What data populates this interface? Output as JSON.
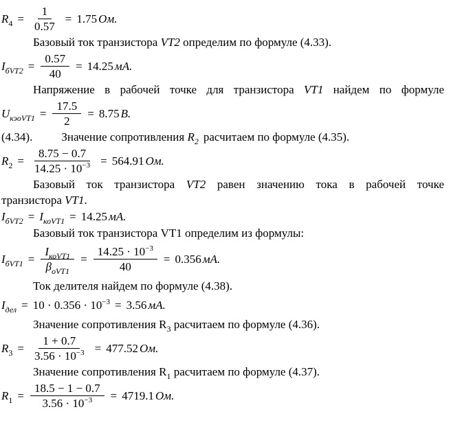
{
  "page": {
    "background": "#ffffff",
    "text_color": "#000000"
  },
  "symbols": {
    "equals": "="
  },
  "blocks": {
    "f1": {
      "variable": "R",
      "subscript": "4",
      "numerator": "1",
      "denominator": "0.57",
      "result": "1.75",
      "unit": "Ом."
    },
    "t1": {
      "pre": "Базовый ток транзистора ",
      "emph": "VT2",
      "post": " определим по формуле (4.33)."
    },
    "f2": {
      "variable": "I",
      "subscript": "бVT2",
      "numerator": "0.57",
      "denominator": "40",
      "result": "14.25",
      "unit": "мА."
    },
    "t2": {
      "pre": "Напряжение в рабочей точке для транзистора ",
      "emph": "VT1",
      "post": " найдем по формуле"
    },
    "f3": {
      "variable": "U",
      "subscript": "кэоVT1",
      "numerator": "17.5",
      "denominator": "2",
      "result": "8.75",
      "unit": "В."
    },
    "t3": {
      "ref": "(4.34).",
      "pre": "Значение сопротивления ",
      "rvar": "R",
      "rsub": "2",
      "post": "расчитаем по формуле (4.35)."
    },
    "f4": {
      "variable": "R",
      "subscript": "2",
      "numerator": "8.75 − 0.7",
      "den_base": "14.25 · 10",
      "den_exp": "−3",
      "result": "564.91",
      "unit": "Ом."
    },
    "t4_line1": {
      "pre": "Базовый ток транзистора ",
      "emph": "VT2",
      "post": " равен значению тока в рабочей точке"
    },
    "t4_line2": {
      "pre": "транзистора ",
      "emph": "VT1",
      "post": "."
    },
    "f5": {
      "var1": "I",
      "sub1": "бVT2",
      "var2": "I",
      "sub2": "коVT1",
      "result": "14.25",
      "unit": "мА."
    },
    "t5": {
      "text": "Базовый ток транзистора VT1 определим из формулы:"
    },
    "f6": {
      "variable": "I",
      "subscript": "бVT1",
      "num1_var": "I",
      "num1_sub": "коVT1",
      "den1_var": "β",
      "den1_sub": "оVT1",
      "num2_base": "14.25 · 10",
      "num2_exp": "−3",
      "den2": "40",
      "result": "0.356",
      "unit": "мА."
    },
    "t6": {
      "text": "Ток делителя найдем по формуле (4.38)."
    },
    "f7": {
      "variable": "I",
      "subscript": "дел",
      "expr_base": "10 · 0.356 · 10",
      "expr_exp": "−3",
      "result": "3.56",
      "unit": "мА."
    },
    "t7": {
      "pre": "Значение сопротивления R",
      "rsub": "3",
      "post": " расчитаем по формуле (4.36)."
    },
    "f8": {
      "variable": "R",
      "subscript": "3",
      "numerator": "1 + 0.7",
      "den_base": "3.56 · 10",
      "den_exp": "−3",
      "result": "477.52",
      "unit": "Ом."
    },
    "t8": {
      "pre": "Значение сопротивления R",
      "rsub": "1",
      "post": " расчитаем по формуле (4.37)."
    },
    "f9": {
      "variable": "R",
      "subscript": "1",
      "numerator": "18.5 − 1 − 0.7",
      "den_base": "3.56 · 10",
      "den_exp": "−3",
      "result": "4719.1",
      "unit": "Ом."
    }
  }
}
